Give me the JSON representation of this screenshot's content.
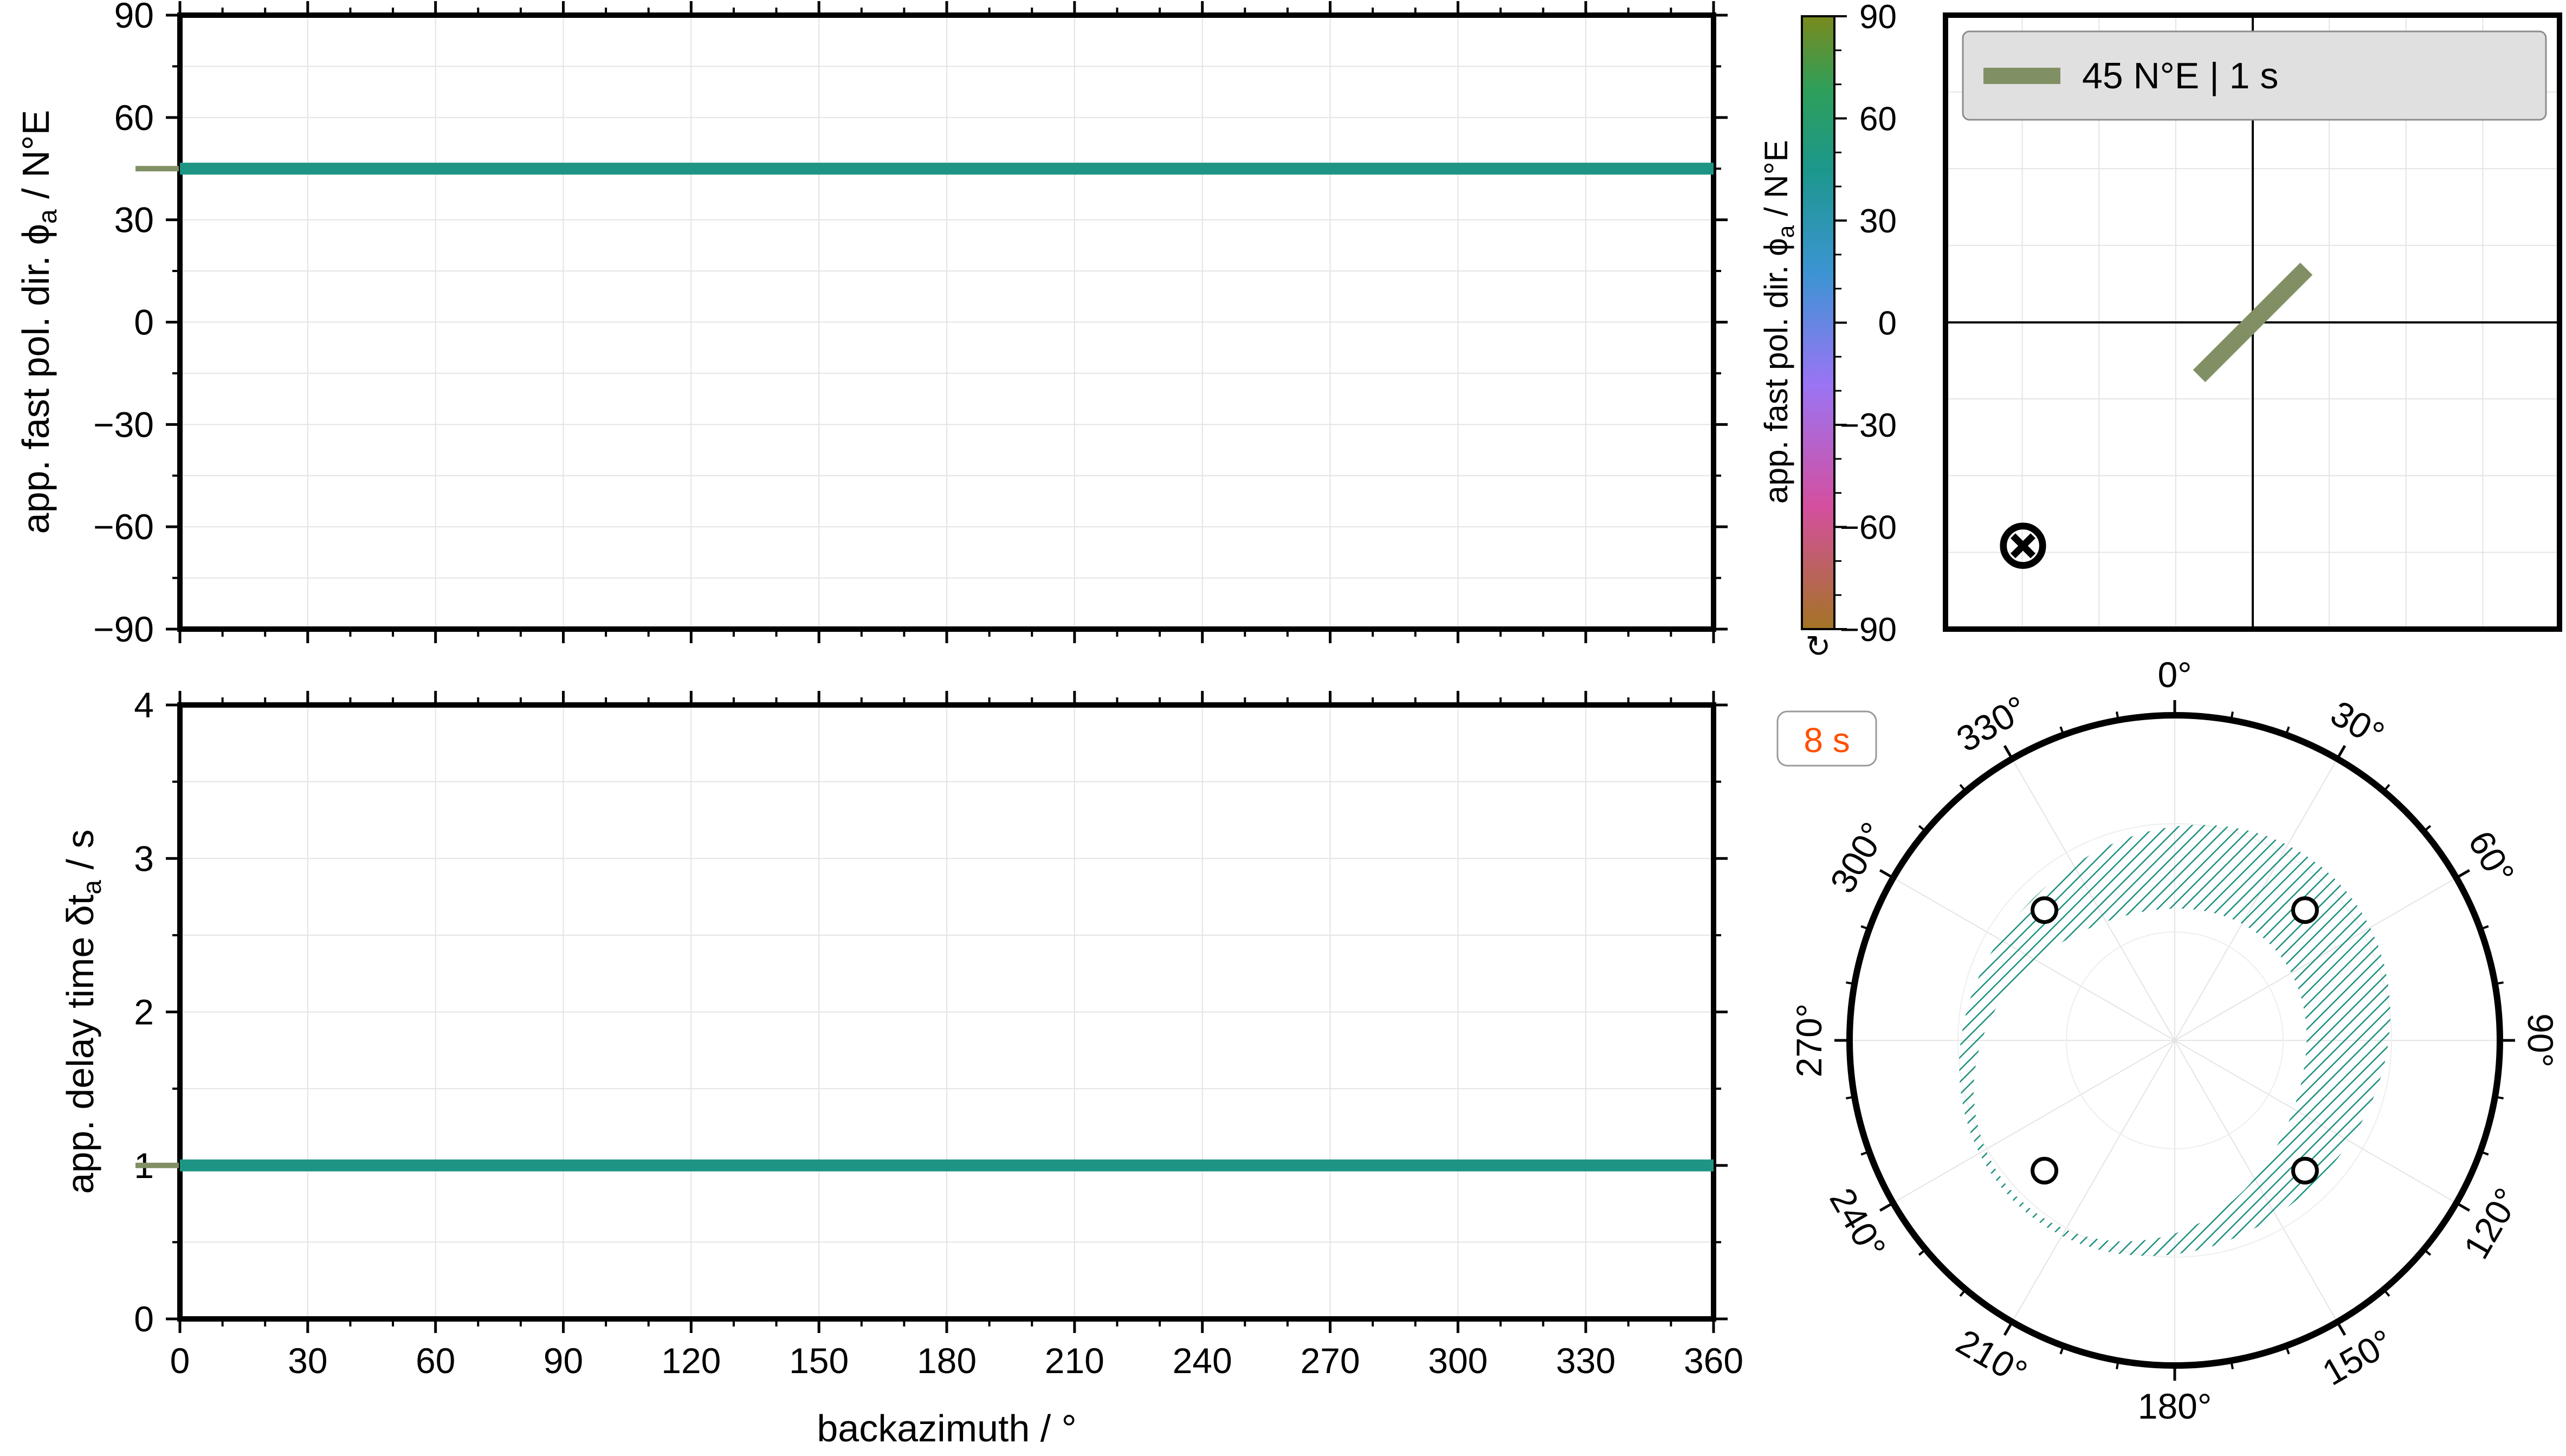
{
  "colors": {
    "model": "#819064",
    "fast_line": "#1e9584",
    "delay_line": "#1e9584",
    "hatch": "#1a8f7e",
    "text_accent": "#ff5000",
    "legend_bg": "#e0e0e0",
    "grid": "#e4e4e4"
  },
  "chart_data": [
    {
      "type": "line",
      "name": "phi",
      "ylabel_pre": "app. fast pol. dir. ",
      "ylabel_sym": "ϕ",
      "ylabel_sub": "a",
      "ylabel_post": " / N°E",
      "xlim": [
        0,
        360
      ],
      "ylim": [
        -90,
        90
      ],
      "yticks": [
        90,
        60,
        30,
        0,
        -30,
        -60,
        -90
      ],
      "ytick_labels": [
        "90",
        "60",
        "30",
        "0",
        "−30",
        "−60",
        "−90"
      ],
      "grid": true,
      "x": [
        0,
        360
      ],
      "y": [
        45,
        45
      ],
      "model_marker": 45
    },
    {
      "type": "line",
      "name": "dt",
      "ylabel_pre": "app. delay time ",
      "ylabel_sym": "δt",
      "ylabel_sub": "a",
      "ylabel_post": " / s",
      "xlabel": "backazimuth / °",
      "xlim": [
        0,
        360
      ],
      "ylim": [
        0,
        4
      ],
      "yticks": [
        0,
        1,
        2,
        3,
        4
      ],
      "ytick_labels": [
        "0",
        "1",
        "2",
        "3",
        "4"
      ],
      "xticks": [
        0,
        30,
        60,
        90,
        120,
        150,
        180,
        210,
        240,
        270,
        300,
        330,
        360
      ],
      "xtick_labels": [
        "0",
        "30",
        "60",
        "90",
        "120",
        "150",
        "180",
        "210",
        "240",
        "270",
        "300",
        "330",
        "360"
      ],
      "grid": true,
      "x": [
        0,
        360
      ],
      "y": [
        1,
        1
      ],
      "model_marker": 1
    },
    {
      "type": "colorbar",
      "label_pre": "app. fast pol. dir. ",
      "label_sym": "ϕ",
      "label_sub": "a",
      "label_post": " / N°E",
      "range": [
        -90,
        90
      ],
      "ticks": [
        "90",
        "60",
        "30",
        "0",
        "−30",
        "−60",
        "−90"
      ],
      "cyclic_symbol": "↻",
      "colormap_stops": [
        "#a47424",
        "#d44f9f",
        "#9a74f4",
        "#3c94d4",
        "#1c978c",
        "#2e9f5a",
        "#7a8a1e"
      ]
    },
    {
      "type": "scatter",
      "name": "model-stereo",
      "legend": "45 N°E | 1 s",
      "legend_position": "top-left",
      "fast_direction_deg": 45,
      "delay_s": 1,
      "symbol": "⊗"
    },
    {
      "type": "polar",
      "name": "backazimuth-polar",
      "period_badge": "8 s",
      "angle_labels": [
        "0°",
        "30°",
        "60°",
        "90°",
        "120°",
        "150°",
        "180°",
        "210°",
        "240°",
        "270°",
        "300°",
        "330°"
      ],
      "null_directions_deg": [
        45,
        135,
        225,
        315
      ]
    }
  ]
}
